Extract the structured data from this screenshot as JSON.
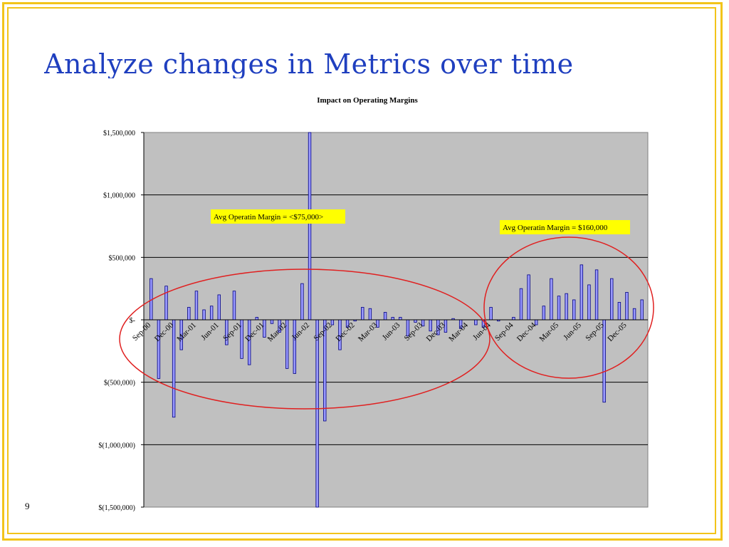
{
  "slide": {
    "title": "Analyze changes in Metrics over time",
    "page_number": "9"
  },
  "colors": {
    "frame": "#f2c41a",
    "title": "#1f3fbf",
    "plot_background": "#c0c0c0",
    "bar_fill": "#9999ff",
    "bar_stroke": "#000080",
    "callout_background": "#ffff00",
    "ellipse": "#e02020"
  },
  "chart_data": {
    "type": "bar",
    "title": "Impact on Operating Margins",
    "xlabel": "",
    "ylabel": "",
    "ylim": [
      -1500000,
      1500000
    ],
    "y_ticks": [
      1500000,
      1000000,
      500000,
      0,
      -500000,
      -1000000,
      -1500000
    ],
    "y_tick_labels": [
      "$1,500,000",
      "$1,000,000",
      "$500,000",
      "$-",
      "$(500,000)",
      "$(1,000,000)",
      "$(1,500,000)"
    ],
    "grid": true,
    "x_tick_labels": [
      "Sep-00",
      "Dec-00",
      "Mar-01",
      "Jun-01",
      "Sep-01",
      "Dec-01",
      "Mar-02",
      "Jun-02",
      "Sep-02",
      "Dec-02",
      "Mar-03",
      "Jun-03",
      "Sep-03",
      "Dec-03",
      "Mar-04",
      "Jun-04",
      "Sep-04",
      "Dec-04",
      "Mar-05",
      "Jun-05",
      "Sep-05",
      "Dec-05"
    ],
    "values": [
      330000,
      -470000,
      270000,
      -780000,
      -240000,
      100000,
      230000,
      80000,
      110000,
      200000,
      -200000,
      230000,
      -310000,
      -360000,
      20000,
      -140000,
      -30000,
      -100000,
      -390000,
      -430000,
      290000,
      1500000,
      -1500000,
      -810000,
      -40000,
      -240000,
      -60000,
      -10000,
      100000,
      90000,
      -60000,
      60000,
      20000,
      20000,
      -130000,
      -20000,
      -50000,
      -90000,
      -120000,
      -100000,
      10000,
      -70000,
      0,
      -40000,
      -60000,
      100000,
      -10000,
      0,
      20000,
      250000,
      360000,
      -40000,
      110000,
      330000,
      190000,
      210000,
      160000,
      440000,
      280000,
      400000,
      -660000,
      330000,
      140000,
      220000,
      90000,
      160000
    ],
    "annotations": [
      {
        "text": "Avg Operatin Margin = <$75,000>"
      },
      {
        "text": "Avg Operatin Margin = $160,000"
      }
    ]
  }
}
